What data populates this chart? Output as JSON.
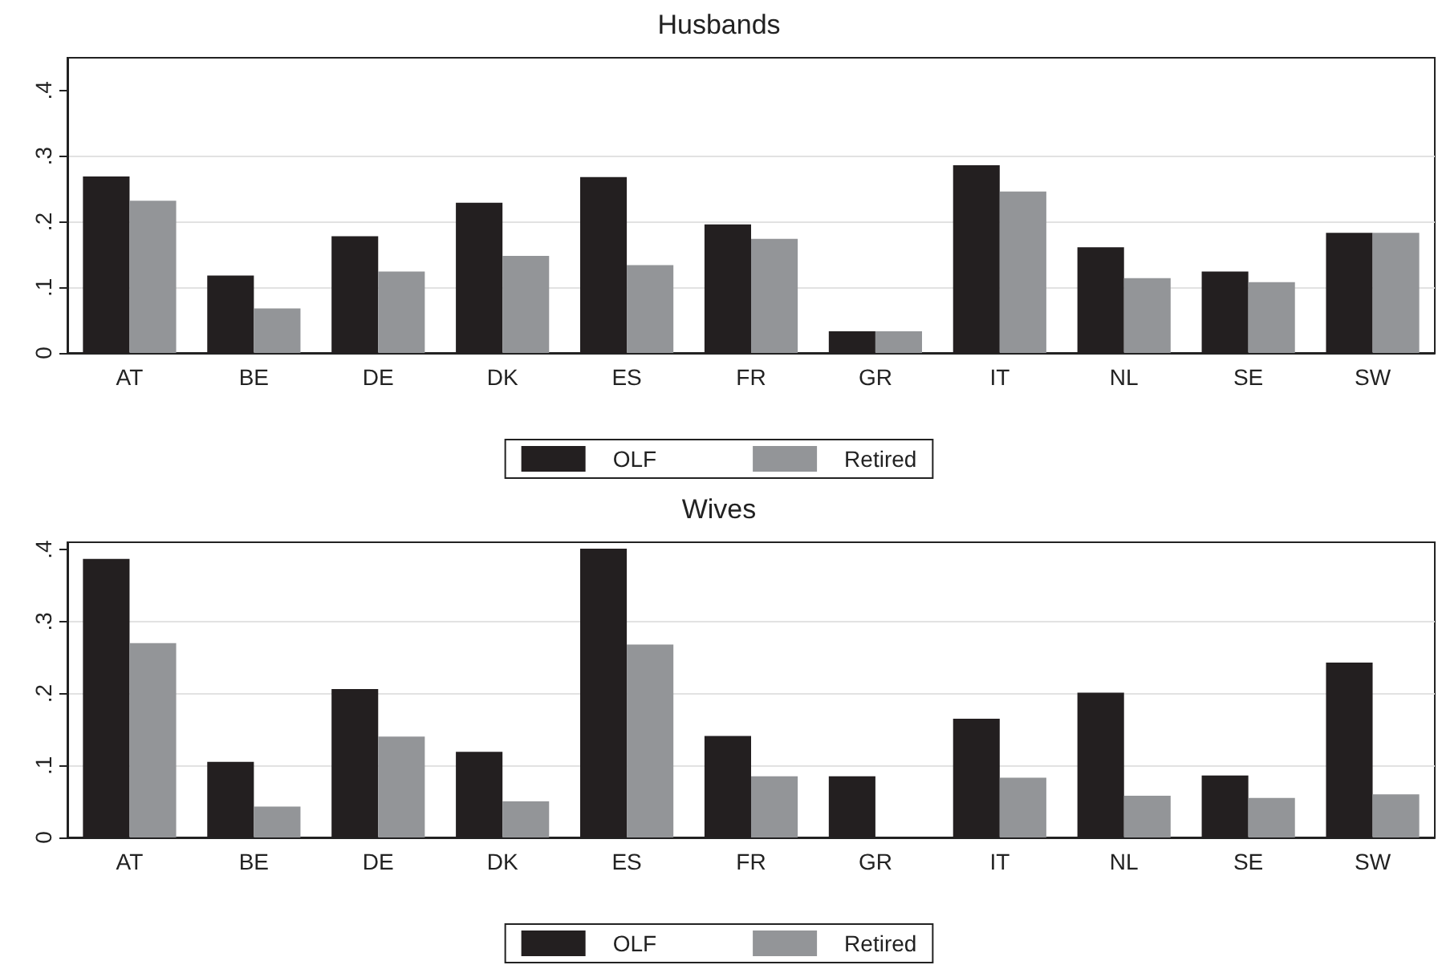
{
  "chart_data": [
    {
      "type": "bar",
      "title": "Husbands",
      "categories": [
        "AT",
        "BE",
        "DE",
        "DK",
        "ES",
        "FR",
        "GR",
        "IT",
        "NL",
        "SE",
        "SW"
      ],
      "series": [
        {
          "name": "OLF",
          "color": "#231f20",
          "values": [
            0.269,
            0.118,
            0.178,
            0.229,
            0.268,
            0.196,
            0.033,
            0.286,
            0.161,
            0.124,
            0.183
          ]
        },
        {
          "name": "Retired",
          "color": "#939598",
          "values": [
            0.232,
            0.068,
            0.124,
            0.148,
            0.134,
            0.174,
            0.033,
            0.246,
            0.114,
            0.108,
            0.183
          ]
        }
      ],
      "ylim": [
        0,
        0.45
      ],
      "yticks": [
        0,
        {
          "value": 0.1,
          "label": ".1"
        },
        {
          "value": 0.2,
          "label": ".2"
        },
        {
          "value": 0.3,
          "label": ".3"
        },
        {
          "value": 0.4,
          "label": ".4"
        }
      ],
      "grid": "y",
      "legend": "bottom"
    },
    {
      "type": "bar",
      "title": "Wives",
      "categories": [
        "AT",
        "BE",
        "DE",
        "DK",
        "ES",
        "FR",
        "GR",
        "IT",
        "NL",
        "SE",
        "SW"
      ],
      "series": [
        {
          "name": "OLF",
          "color": "#231f20",
          "values": [
            0.387,
            0.105,
            0.206,
            0.119,
            0.401,
            0.141,
            0.085,
            0.165,
            0.201,
            0.086,
            0.243
          ]
        },
        {
          "name": "Retired",
          "color": "#939598",
          "values": [
            0.27,
            0.043,
            0.14,
            0.05,
            0.268,
            0.085,
            null,
            0.083,
            0.058,
            0.055,
            0.06
          ]
        }
      ],
      "ylim": [
        0,
        0.41
      ],
      "yticks": [
        0,
        {
          "value": 0.1,
          "label": ".1"
        },
        {
          "value": 0.2,
          "label": ".2"
        },
        {
          "value": 0.3,
          "label": ".3"
        },
        {
          "value": 0.4,
          "label": ".4"
        }
      ],
      "grid": "y",
      "legend": "bottom"
    }
  ]
}
